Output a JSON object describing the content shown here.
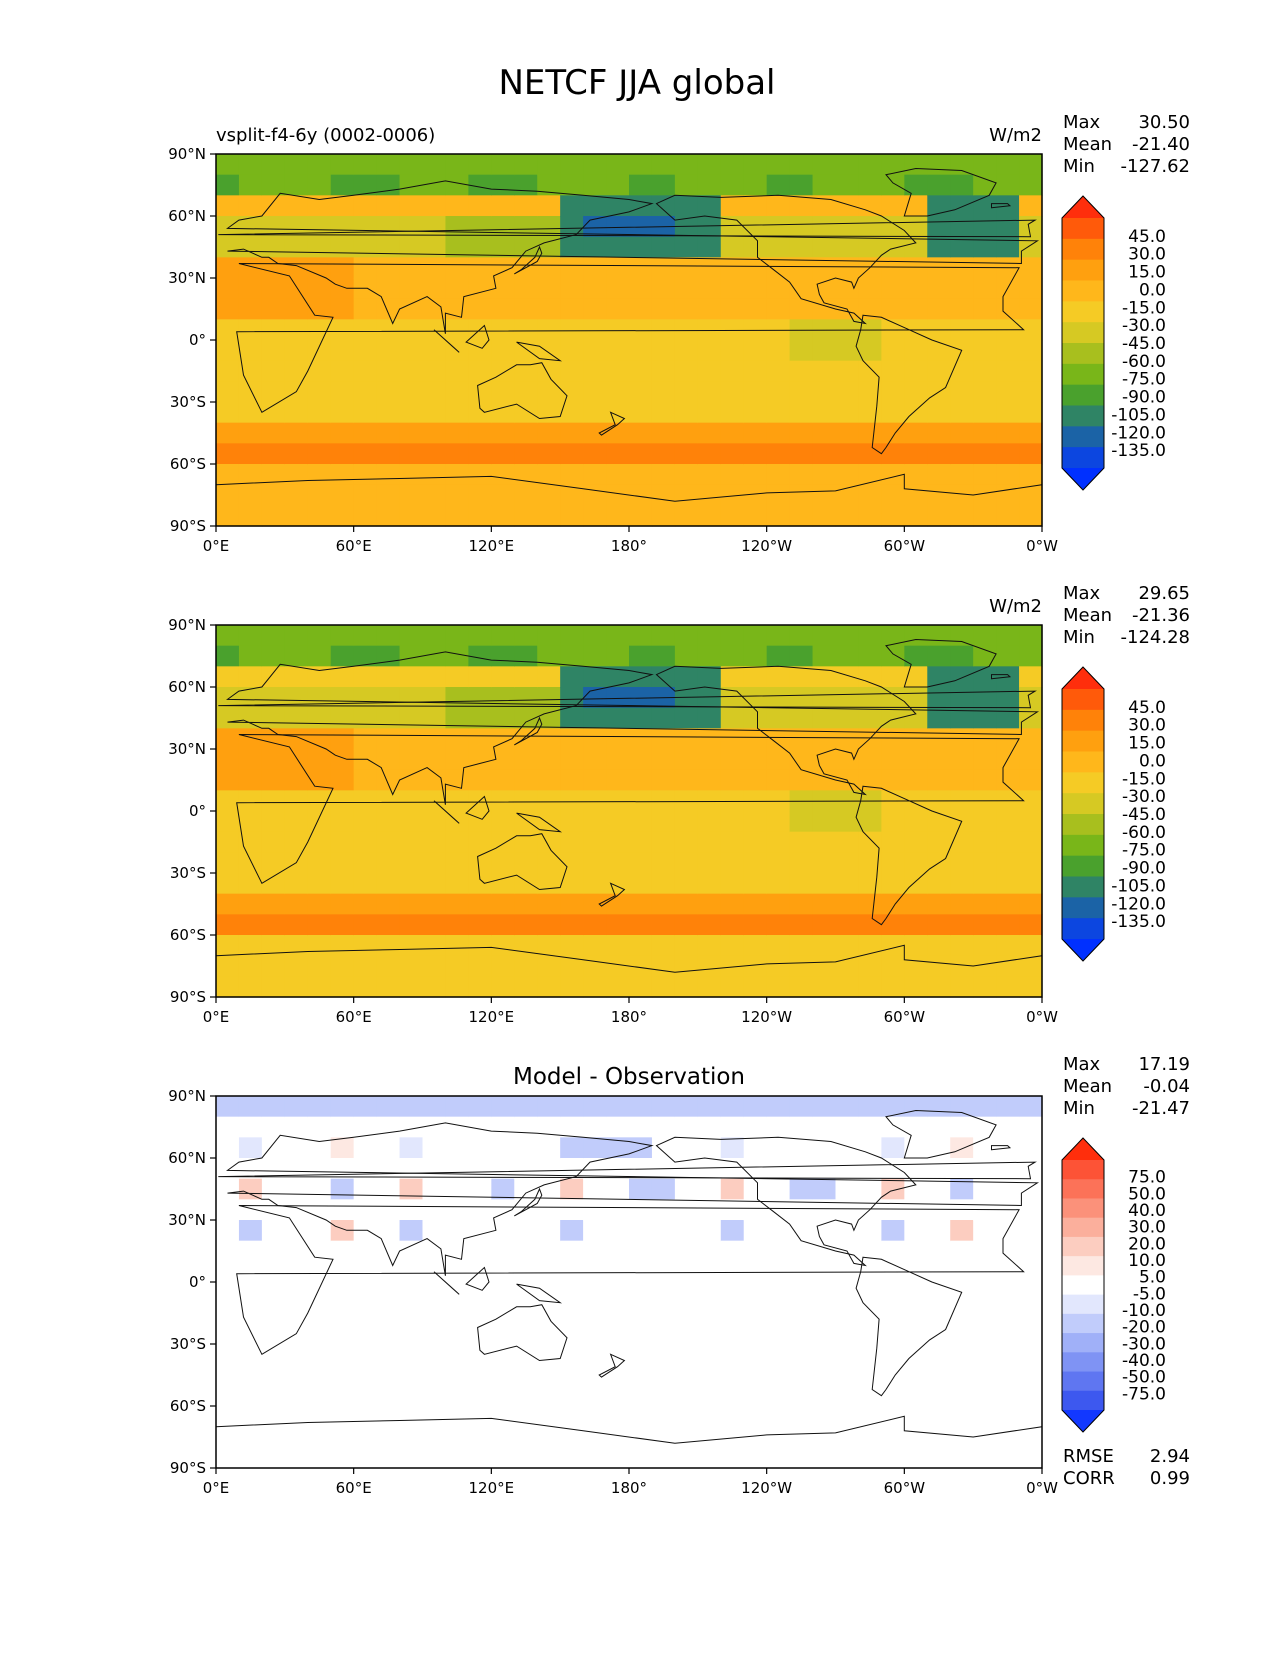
{
  "title": "NETCF JJA global",
  "chart_data": [
    {
      "type": "heatmap",
      "subtitle_left": "vsplit-f4-6y (0002-0006)",
      "subtitle_center": "",
      "units": "W/m2",
      "stats": [
        {
          "label": "Max",
          "value": "30.50"
        },
        {
          "label": "Mean",
          "value": "-21.40"
        },
        {
          "label": "Min",
          "value": "-127.62"
        }
      ],
      "colorbar": {
        "levels": [
          "45.0",
          "30.0",
          "15.0",
          "0.0",
          "-15.0",
          "-30.0",
          "-45.0",
          "-60.0",
          "-75.0",
          "-90.0",
          "-105.0",
          "-120.0",
          "-135.0"
        ],
        "colors": [
          "#ff2e0c",
          "#ff5a0a",
          "#ff8209",
          "#ffa00f",
          "#ffb71b",
          "#f5cb25",
          "#d6c923",
          "#a8bf1e",
          "#79b619",
          "#4aa12d",
          "#2f8465",
          "#1b63a6",
          "#0c46e0",
          "#0030ff"
        ]
      },
      "x_ticks": [
        "0°E",
        "60°E",
        "120°E",
        "180°",
        "120°W",
        "60°W",
        "0°W"
      ],
      "y_ticks": [
        "90°N",
        "60°N",
        "30°N",
        "0°",
        "30°S",
        "60°S",
        "90°S"
      ],
      "extra_stats": []
    },
    {
      "type": "heatmap",
      "subtitle_left": "",
      "subtitle_center": "",
      "units": "W/m2",
      "stats": [
        {
          "label": "Max",
          "value": "29.65"
        },
        {
          "label": "Mean",
          "value": "-21.36"
        },
        {
          "label": "Min",
          "value": "-124.28"
        }
      ],
      "colorbar": {
        "levels": [
          "45.0",
          "30.0",
          "15.0",
          "0.0",
          "-15.0",
          "-30.0",
          "-45.0",
          "-60.0",
          "-75.0",
          "-90.0",
          "-105.0",
          "-120.0",
          "-135.0"
        ],
        "colors": [
          "#ff2e0c",
          "#ff5a0a",
          "#ff8209",
          "#ffa00f",
          "#ffb71b",
          "#f5cb25",
          "#d6c923",
          "#a8bf1e",
          "#79b619",
          "#4aa12d",
          "#2f8465",
          "#1b63a6",
          "#0c46e0",
          "#0030ff"
        ]
      },
      "x_ticks": [
        "0°E",
        "60°E",
        "120°E",
        "180°",
        "120°W",
        "60°W",
        "0°W"
      ],
      "y_ticks": [
        "90°N",
        "60°N",
        "30°N",
        "0°",
        "30°S",
        "60°S",
        "90°S"
      ],
      "extra_stats": []
    },
    {
      "type": "heatmap",
      "subtitle_left": "",
      "subtitle_center": "Model - Observation",
      "units": "",
      "stats": [
        {
          "label": "Max",
          "value": "17.19"
        },
        {
          "label": "Mean",
          "value": "-0.04"
        },
        {
          "label": "Min",
          "value": "-21.47"
        }
      ],
      "colorbar": {
        "levels": [
          "75.0",
          "50.0",
          "40.0",
          "30.0",
          "20.0",
          "10.0",
          "5.0",
          "-5.0",
          "-10.0",
          "-20.0",
          "-30.0",
          "-40.0",
          "-50.0",
          "-75.0"
        ],
        "colors": [
          "#ff2e0c",
          "#fd5336",
          "#fc7258",
          "#fb917a",
          "#fbaf9c",
          "#fccdc0",
          "#fde8e2",
          "#ffffff",
          "#e2e7fd",
          "#c1ccfb",
          "#a0b0f8",
          "#7f93f4",
          "#5f76f1",
          "#3d58ef",
          "#1238ff"
        ]
      },
      "x_ticks": [
        "0°E",
        "60°E",
        "120°E",
        "180°",
        "120°W",
        "60°W",
        "0°W"
      ],
      "y_ticks": [
        "90°N",
        "60°N",
        "30°N",
        "0°",
        "30°S",
        "60°S",
        "90°S"
      ],
      "extra_stats": [
        {
          "label": "RMSE",
          "value": "2.94"
        },
        {
          "label": "CORR",
          "value": "0.99"
        }
      ]
    }
  ]
}
